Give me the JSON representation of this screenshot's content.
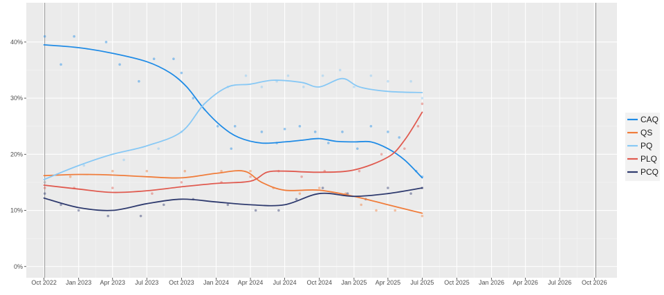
{
  "chart_data": {
    "type": "line",
    "title": "",
    "xlabel": "",
    "ylabel": "",
    "x_ticks": [
      "Oct 2022",
      "Jan 2023",
      "Apr 2023",
      "Jul 2023",
      "Oct 2023",
      "Jan 2024",
      "Apr 2024",
      "Jul 2024",
      "Oct 2024",
      "Jan 2025",
      "Apr 2025",
      "Jul 2025",
      "Oct 2025",
      "Jan 2026",
      "Apr 2026",
      "Jul 2026",
      "Oct 2026"
    ],
    "x_range": [
      "2022-08-15",
      "2026-11-30"
    ],
    "y_ticks": [
      "0%",
      "10%",
      "20%",
      "30%",
      "40%"
    ],
    "ylim": [
      -2,
      47
    ],
    "vertical_markers": [
      "2022-10-03",
      "2026-10-05"
    ],
    "grid": true,
    "legend_position": "right",
    "series": [
      {
        "name": "CAQ",
        "color": "#1f8be6",
        "trend": [
          [
            "2022-10-01",
            39.5
          ],
          [
            "2023-01-01",
            39.0
          ],
          [
            "2023-04-01",
            38.0
          ],
          [
            "2023-07-01",
            36.5
          ],
          [
            "2023-09-01",
            34.5
          ],
          [
            "2023-10-15",
            32.0
          ],
          [
            "2023-12-01",
            28.0
          ],
          [
            "2024-01-15",
            25.0
          ],
          [
            "2024-03-01",
            23.0
          ],
          [
            "2024-05-01",
            22.0
          ],
          [
            "2024-07-01",
            22.2
          ],
          [
            "2024-08-15",
            22.5
          ],
          [
            "2024-10-01",
            22.8
          ],
          [
            "2024-11-15",
            22.3
          ],
          [
            "2025-01-01",
            22.2
          ],
          [
            "2025-02-15",
            22.2
          ],
          [
            "2025-04-01",
            21.0
          ],
          [
            "2025-05-15",
            19.0
          ],
          [
            "2025-07-01",
            15.8
          ]
        ],
        "polls": [
          [
            "2022-10-03",
            41
          ],
          [
            "2022-11-15",
            36
          ],
          [
            "2022-12-20",
            41
          ],
          [
            "2023-03-15",
            40
          ],
          [
            "2023-04-20",
            36
          ],
          [
            "2023-06-10",
            33
          ],
          [
            "2023-07-20",
            37
          ],
          [
            "2023-09-10",
            37
          ],
          [
            "2023-10-01",
            34.5
          ],
          [
            "2023-11-01",
            30
          ],
          [
            "2024-01-05",
            25
          ],
          [
            "2024-02-10",
            21
          ],
          [
            "2024-02-20",
            25
          ],
          [
            "2024-05-01",
            24
          ],
          [
            "2024-06-10",
            22
          ],
          [
            "2024-07-01",
            24.5
          ],
          [
            "2024-08-10",
            25
          ],
          [
            "2024-09-20",
            24
          ],
          [
            "2024-10-25",
            22
          ],
          [
            "2024-12-01",
            24
          ],
          [
            "2025-01-10",
            21
          ],
          [
            "2025-02-15",
            25
          ],
          [
            "2025-04-01",
            24
          ],
          [
            "2025-05-01",
            23
          ],
          [
            "2025-06-15",
            17
          ],
          [
            "2025-07-01",
            16
          ]
        ]
      },
      {
        "name": "QS",
        "color": "#f07c3a",
        "trend": [
          [
            "2022-10-01",
            16.2
          ],
          [
            "2023-01-01",
            16.4
          ],
          [
            "2023-04-01",
            16.3
          ],
          [
            "2023-07-01",
            16.0
          ],
          [
            "2023-10-01",
            15.8
          ],
          [
            "2024-01-01",
            16.6
          ],
          [
            "2024-03-15",
            17.0
          ],
          [
            "2024-05-01",
            15.0
          ],
          [
            "2024-07-01",
            13.6
          ],
          [
            "2024-10-01",
            13.6
          ],
          [
            "2025-01-01",
            12.5
          ],
          [
            "2025-04-01",
            11.0
          ],
          [
            "2025-07-01",
            9.5
          ]
        ],
        "polls": [
          [
            "2022-10-03",
            15
          ],
          [
            "2022-12-10",
            16
          ],
          [
            "2023-04-01",
            17
          ],
          [
            "2023-07-01",
            17
          ],
          [
            "2023-10-10",
            17
          ],
          [
            "2024-01-15",
            17
          ],
          [
            "2024-04-01",
            17
          ],
          [
            "2024-06-01",
            14
          ],
          [
            "2024-08-10",
            13
          ],
          [
            "2024-10-01",
            14
          ],
          [
            "2024-12-10",
            13
          ],
          [
            "2025-01-20",
            11
          ],
          [
            "2025-03-01",
            10
          ],
          [
            "2025-04-20",
            10
          ],
          [
            "2025-07-01",
            9
          ]
        ]
      },
      {
        "name": "PQ",
        "color": "#87c8f5",
        "trend": [
          [
            "2022-10-01",
            15.5
          ],
          [
            "2023-01-01",
            18.0
          ],
          [
            "2023-04-01",
            20.0
          ],
          [
            "2023-07-01",
            21.5
          ],
          [
            "2023-10-01",
            24.0
          ],
          [
            "2023-12-01",
            29.0
          ],
          [
            "2024-02-01",
            32.0
          ],
          [
            "2024-04-01",
            32.5
          ],
          [
            "2024-06-01",
            33.2
          ],
          [
            "2024-08-15",
            32.8
          ],
          [
            "2024-10-01",
            32.0
          ],
          [
            "2024-12-01",
            33.5
          ],
          [
            "2025-01-15",
            32.0
          ],
          [
            "2025-04-01",
            31.2
          ],
          [
            "2025-07-01",
            31.0
          ]
        ],
        "polls": [
          [
            "2022-10-03",
            15
          ],
          [
            "2023-01-15",
            18
          ],
          [
            "2023-05-01",
            19
          ],
          [
            "2023-08-01",
            21
          ],
          [
            "2023-10-01",
            24
          ],
          [
            "2023-12-01",
            28
          ],
          [
            "2024-02-01",
            32
          ],
          [
            "2024-03-20",
            34
          ],
          [
            "2024-05-01",
            32
          ],
          [
            "2024-06-10",
            33
          ],
          [
            "2024-07-10",
            34
          ],
          [
            "2024-08-20",
            32
          ],
          [
            "2024-10-10",
            34
          ],
          [
            "2024-11-25",
            35
          ],
          [
            "2025-01-01",
            32
          ],
          [
            "2025-02-15",
            34
          ],
          [
            "2025-04-01",
            33
          ],
          [
            "2025-06-01",
            33
          ],
          [
            "2025-07-01",
            30
          ]
        ]
      },
      {
        "name": "PLQ",
        "color": "#e05a4f",
        "trend": [
          [
            "2022-10-01",
            14.5
          ],
          [
            "2023-01-01",
            13.8
          ],
          [
            "2023-04-01",
            13.2
          ],
          [
            "2023-07-01",
            13.5
          ],
          [
            "2023-10-01",
            14.2
          ],
          [
            "2024-01-01",
            14.8
          ],
          [
            "2024-04-01",
            15.2
          ],
          [
            "2024-05-15",
            16.8
          ],
          [
            "2024-07-01",
            17.0
          ],
          [
            "2024-10-01",
            16.8
          ],
          [
            "2025-01-01",
            17.2
          ],
          [
            "2025-04-01",
            19.5
          ],
          [
            "2025-05-15",
            22.5
          ],
          [
            "2025-07-01",
            27.5
          ]
        ],
        "polls": [
          [
            "2022-10-03",
            14
          ],
          [
            "2022-12-20",
            14
          ],
          [
            "2023-04-01",
            14
          ],
          [
            "2023-07-15",
            13
          ],
          [
            "2023-10-01",
            15
          ],
          [
            "2024-01-15",
            15
          ],
          [
            "2024-04-01",
            16
          ],
          [
            "2024-06-15",
            17
          ],
          [
            "2024-08-15",
            16
          ],
          [
            "2024-10-15",
            17
          ],
          [
            "2025-01-15",
            17
          ],
          [
            "2025-03-15",
            20
          ],
          [
            "2025-05-15",
            21
          ],
          [
            "2025-06-20",
            25
          ],
          [
            "2025-07-01",
            29
          ]
        ]
      },
      {
        "name": "PCQ",
        "color": "#2e3a6e",
        "trend": [
          [
            "2022-10-01",
            12.2
          ],
          [
            "2023-01-01",
            10.5
          ],
          [
            "2023-04-01",
            10.0
          ],
          [
            "2023-07-01",
            11.2
          ],
          [
            "2023-10-01",
            12.0
          ],
          [
            "2024-01-01",
            11.5
          ],
          [
            "2024-04-01",
            11.0
          ],
          [
            "2024-07-01",
            11.0
          ],
          [
            "2024-10-01",
            13.0
          ],
          [
            "2025-01-01",
            12.5
          ],
          [
            "2025-04-01",
            13.0
          ],
          [
            "2025-07-01",
            14.0
          ]
        ],
        "polls": [
          [
            "2022-10-03",
            13
          ],
          [
            "2022-11-15",
            11
          ],
          [
            "2023-01-01",
            10
          ],
          [
            "2023-03-20",
            9
          ],
          [
            "2023-06-15",
            9
          ],
          [
            "2023-08-15",
            11
          ],
          [
            "2023-11-01",
            12
          ],
          [
            "2024-02-01",
            11
          ],
          [
            "2024-04-15",
            10
          ],
          [
            "2024-06-15",
            10
          ],
          [
            "2024-08-01",
            12
          ],
          [
            "2024-10-10",
            14
          ],
          [
            "2024-12-15",
            13
          ],
          [
            "2025-02-01",
            12
          ],
          [
            "2025-04-01",
            14
          ],
          [
            "2025-06-01",
            13
          ],
          [
            "2025-07-01",
            14
          ]
        ]
      }
    ]
  }
}
